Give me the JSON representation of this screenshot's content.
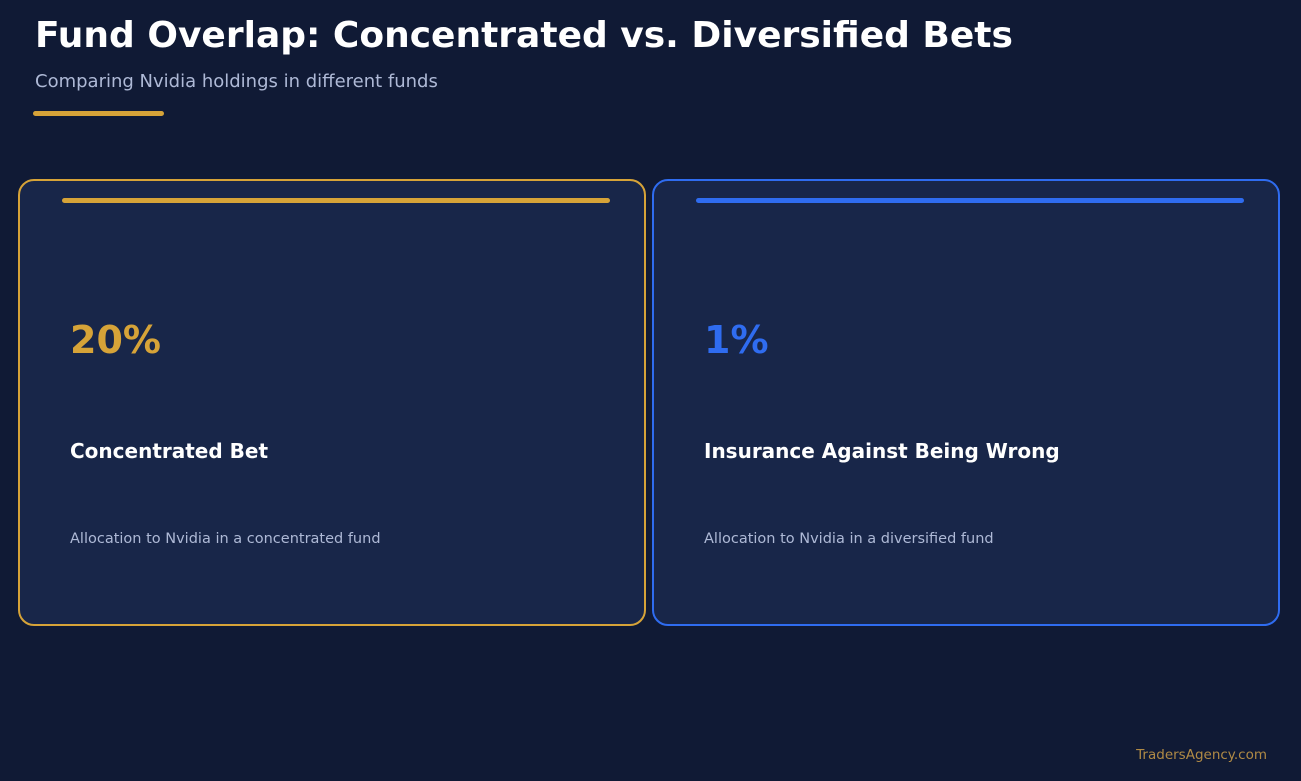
{
  "header": {
    "title": "Fund Overlap: Concentrated vs. Diversified Bets",
    "subtitle": "Comparing Nvidia holdings in different funds"
  },
  "cards": [
    {
      "value": "20%",
      "heading": "Concentrated Bet",
      "description": "Allocation to Nvidia in a concentrated fund",
      "accent_color": "#d6a338"
    },
    {
      "value": "1%",
      "heading": "Insurance Against Being Wrong",
      "description": "Allocation to Nvidia in a diversified fund",
      "accent_color": "#2f6cf0"
    }
  ],
  "footer": {
    "watermark": "TradersAgency.com"
  },
  "colors": {
    "background": "#101a35",
    "card_background": "#182649",
    "gold": "#d6a338",
    "blue": "#2f6cf0",
    "muted_text": "#aeb9d6",
    "watermark": "#b08a45"
  }
}
